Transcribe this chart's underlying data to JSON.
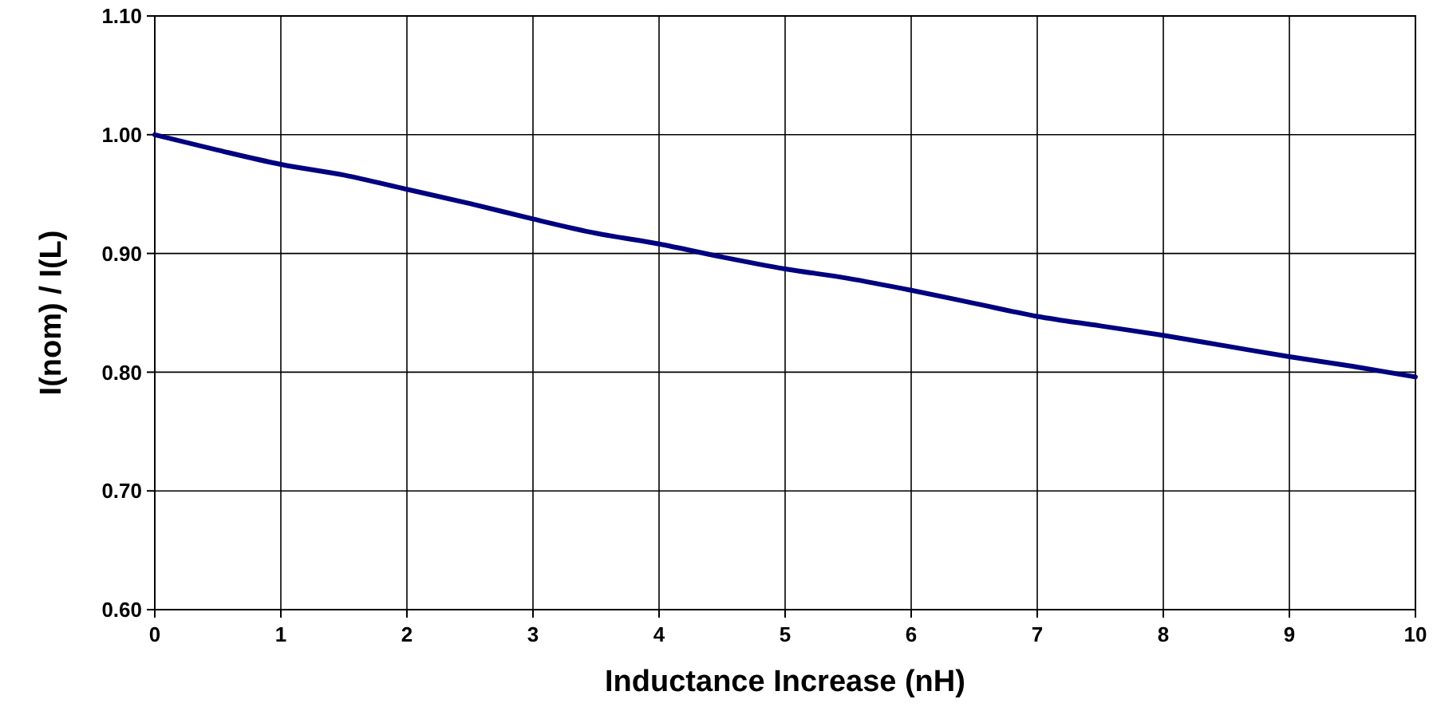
{
  "chart_data": {
    "type": "line",
    "xlabel": "Inductance Increase (nH)",
    "ylabel": "I(nom) / I(L)",
    "x": [
      0,
      0.5,
      1,
      1.5,
      2,
      2.5,
      3,
      3.5,
      4,
      4.5,
      5,
      5.5,
      6,
      6.5,
      7,
      7.5,
      8,
      8.5,
      9,
      9.5,
      10
    ],
    "series": [
      {
        "color": "#000080",
        "values": [
          1.0,
          0.987,
          0.975,
          0.966,
          0.954,
          0.942,
          0.929,
          0.917,
          0.908,
          0.897,
          0.887,
          0.879,
          0.869,
          0.858,
          0.847,
          0.839,
          0.831,
          0.822,
          0.813,
          0.805,
          0.796
        ]
      }
    ],
    "xlim": [
      0,
      10
    ],
    "xticks": [
      0,
      1,
      2,
      3,
      4,
      5,
      6,
      7,
      8,
      9,
      10
    ],
    "ylim": [
      0.6,
      1.1
    ],
    "yticks": [
      {
        "value": 0.6,
        "label": "0.60"
      },
      {
        "value": 0.7,
        "label": "0.70"
      },
      {
        "value": 0.8,
        "label": "0.80"
      },
      {
        "value": 0.9,
        "label": "0.90"
      },
      {
        "value": 1.0,
        "label": "1.00"
      },
      {
        "value": 1.1,
        "label": "1.10"
      }
    ],
    "grid": true,
    "marker": "none",
    "line_style": "solid"
  }
}
